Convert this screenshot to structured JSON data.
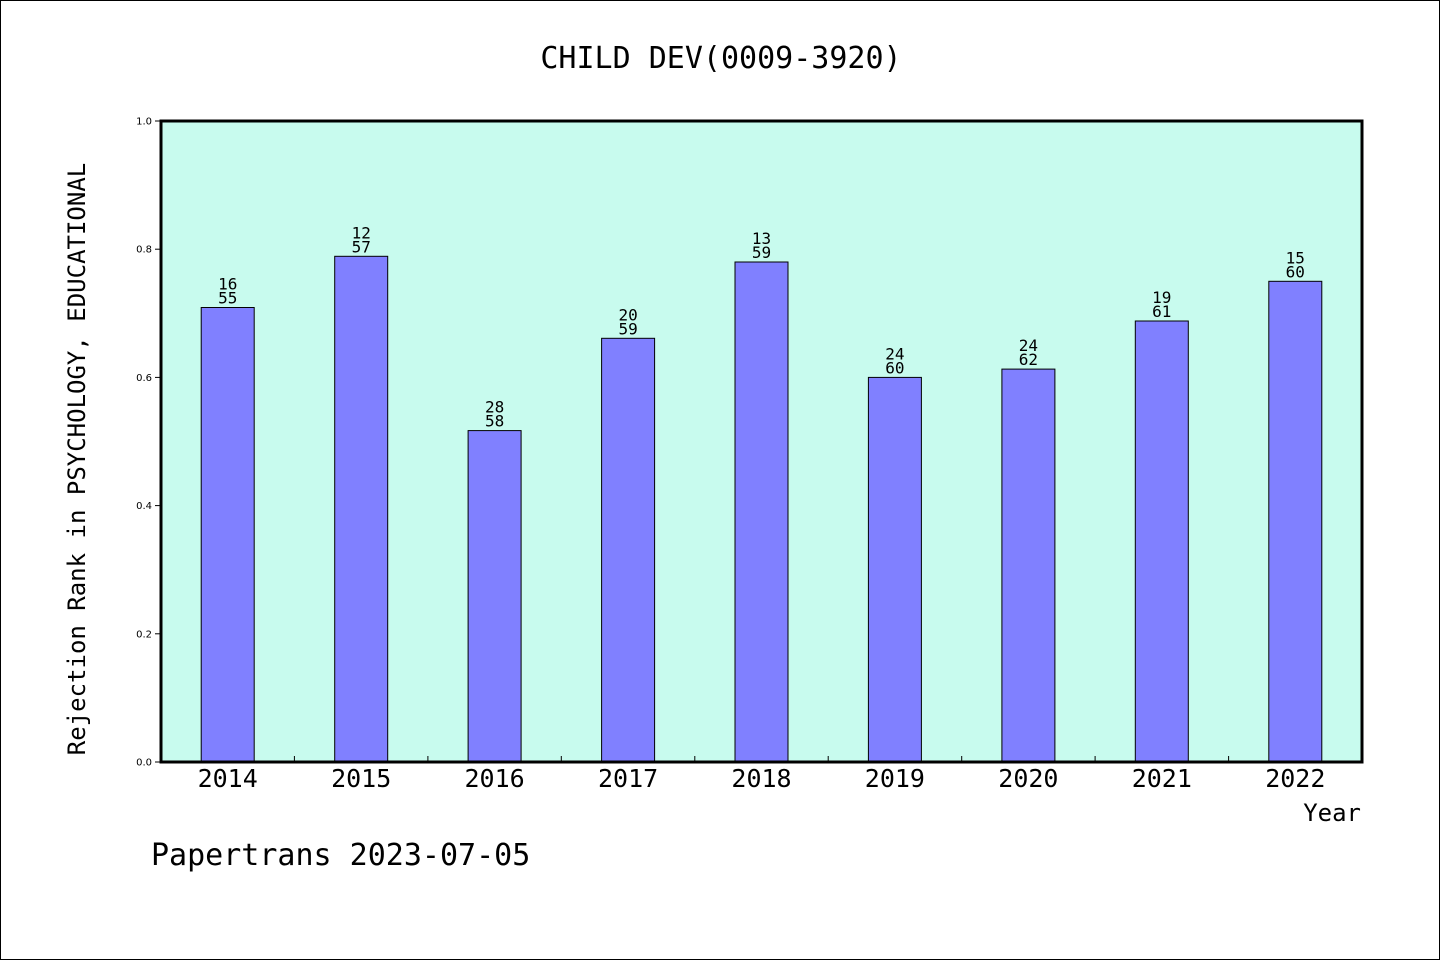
{
  "chart_data": {
    "type": "bar",
    "title": "CHILD DEV(0009-3920)",
    "xlabel": "Year",
    "ylabel": "Rejection Rank in PSYCHOLOGY, EDUCATIONAL",
    "categories": [
      "2014",
      "2015",
      "2016",
      "2017",
      "2018",
      "2019",
      "2020",
      "2021",
      "2022"
    ],
    "values": [
      0.709,
      0.789,
      0.517,
      0.661,
      0.78,
      0.6,
      0.613,
      0.688,
      0.75
    ],
    "bar_labels": [
      [
        "16",
        "55"
      ],
      [
        "12",
        "57"
      ],
      [
        "28",
        "58"
      ],
      [
        "20",
        "59"
      ],
      [
        "13",
        "59"
      ],
      [
        "24",
        "60"
      ],
      [
        "24",
        "62"
      ],
      [
        "19",
        "61"
      ],
      [
        "15",
        "60"
      ]
    ],
    "ylim": [
      0,
      1.0
    ],
    "yticks": [
      "0.0",
      "0.2",
      "0.4",
      "0.6",
      "0.8",
      "1.0"
    ],
    "grid": false,
    "colors": {
      "bar": "#8080ff",
      "plot_background": "#c8fbee",
      "bar_edge": "#000000"
    }
  },
  "footer": {
    "text": "Papertrans 2023-07-05"
  }
}
